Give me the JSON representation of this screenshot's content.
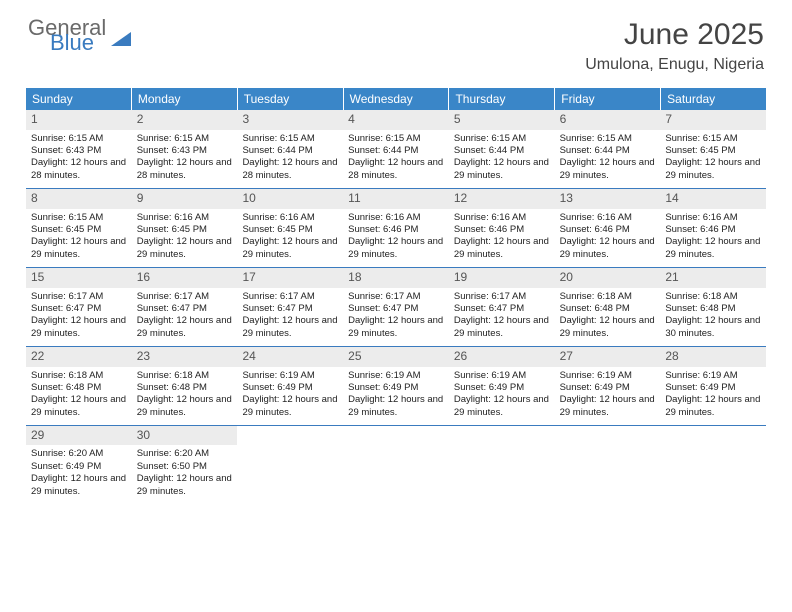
{
  "brand": {
    "word1": "General",
    "word2": "Blue"
  },
  "title": "June 2025",
  "location": "Umulona, Enugu, Nigeria",
  "header_bg": "#3a86c8",
  "divider_color": "#3a7bbf",
  "daynum_bg": "#ececec",
  "dow": [
    "Sunday",
    "Monday",
    "Tuesday",
    "Wednesday",
    "Thursday",
    "Friday",
    "Saturday"
  ],
  "weeks": [
    [
      {
        "n": "1",
        "sr": "6:15 AM",
        "ss": "6:43 PM",
        "dl": "12 hours and 28 minutes."
      },
      {
        "n": "2",
        "sr": "6:15 AM",
        "ss": "6:43 PM",
        "dl": "12 hours and 28 minutes."
      },
      {
        "n": "3",
        "sr": "6:15 AM",
        "ss": "6:44 PM",
        "dl": "12 hours and 28 minutes."
      },
      {
        "n": "4",
        "sr": "6:15 AM",
        "ss": "6:44 PM",
        "dl": "12 hours and 28 minutes."
      },
      {
        "n": "5",
        "sr": "6:15 AM",
        "ss": "6:44 PM",
        "dl": "12 hours and 29 minutes."
      },
      {
        "n": "6",
        "sr": "6:15 AM",
        "ss": "6:44 PM",
        "dl": "12 hours and 29 minutes."
      },
      {
        "n": "7",
        "sr": "6:15 AM",
        "ss": "6:45 PM",
        "dl": "12 hours and 29 minutes."
      }
    ],
    [
      {
        "n": "8",
        "sr": "6:15 AM",
        "ss": "6:45 PM",
        "dl": "12 hours and 29 minutes."
      },
      {
        "n": "9",
        "sr": "6:16 AM",
        "ss": "6:45 PM",
        "dl": "12 hours and 29 minutes."
      },
      {
        "n": "10",
        "sr": "6:16 AM",
        "ss": "6:45 PM",
        "dl": "12 hours and 29 minutes."
      },
      {
        "n": "11",
        "sr": "6:16 AM",
        "ss": "6:46 PM",
        "dl": "12 hours and 29 minutes."
      },
      {
        "n": "12",
        "sr": "6:16 AM",
        "ss": "6:46 PM",
        "dl": "12 hours and 29 minutes."
      },
      {
        "n": "13",
        "sr": "6:16 AM",
        "ss": "6:46 PM",
        "dl": "12 hours and 29 minutes."
      },
      {
        "n": "14",
        "sr": "6:16 AM",
        "ss": "6:46 PM",
        "dl": "12 hours and 29 minutes."
      }
    ],
    [
      {
        "n": "15",
        "sr": "6:17 AM",
        "ss": "6:47 PM",
        "dl": "12 hours and 29 minutes."
      },
      {
        "n": "16",
        "sr": "6:17 AM",
        "ss": "6:47 PM",
        "dl": "12 hours and 29 minutes."
      },
      {
        "n": "17",
        "sr": "6:17 AM",
        "ss": "6:47 PM",
        "dl": "12 hours and 29 minutes."
      },
      {
        "n": "18",
        "sr": "6:17 AM",
        "ss": "6:47 PM",
        "dl": "12 hours and 29 minutes."
      },
      {
        "n": "19",
        "sr": "6:17 AM",
        "ss": "6:47 PM",
        "dl": "12 hours and 29 minutes."
      },
      {
        "n": "20",
        "sr": "6:18 AM",
        "ss": "6:48 PM",
        "dl": "12 hours and 29 minutes."
      },
      {
        "n": "21",
        "sr": "6:18 AM",
        "ss": "6:48 PM",
        "dl": "12 hours and 30 minutes."
      }
    ],
    [
      {
        "n": "22",
        "sr": "6:18 AM",
        "ss": "6:48 PM",
        "dl": "12 hours and 29 minutes."
      },
      {
        "n": "23",
        "sr": "6:18 AM",
        "ss": "6:48 PM",
        "dl": "12 hours and 29 minutes."
      },
      {
        "n": "24",
        "sr": "6:19 AM",
        "ss": "6:49 PM",
        "dl": "12 hours and 29 minutes."
      },
      {
        "n": "25",
        "sr": "6:19 AM",
        "ss": "6:49 PM",
        "dl": "12 hours and 29 minutes."
      },
      {
        "n": "26",
        "sr": "6:19 AM",
        "ss": "6:49 PM",
        "dl": "12 hours and 29 minutes."
      },
      {
        "n": "27",
        "sr": "6:19 AM",
        "ss": "6:49 PM",
        "dl": "12 hours and 29 minutes."
      },
      {
        "n": "28",
        "sr": "6:19 AM",
        "ss": "6:49 PM",
        "dl": "12 hours and 29 minutes."
      }
    ],
    [
      {
        "n": "29",
        "sr": "6:20 AM",
        "ss": "6:49 PM",
        "dl": "12 hours and 29 minutes."
      },
      {
        "n": "30",
        "sr": "6:20 AM",
        "ss": "6:50 PM",
        "dl": "12 hours and 29 minutes."
      },
      null,
      null,
      null,
      null,
      null
    ]
  ],
  "labels": {
    "sunrise": "Sunrise:",
    "sunset": "Sunset:",
    "daylight": "Daylight:"
  }
}
